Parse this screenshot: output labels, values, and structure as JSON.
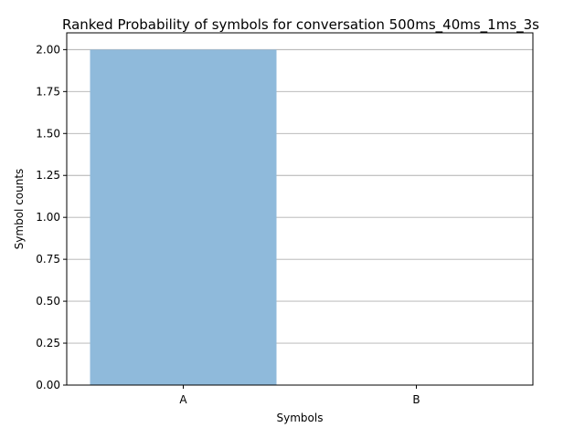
{
  "chart_data": {
    "type": "bar",
    "title": "Ranked Probability of symbols for conversation 500ms_40ms_1ms_3s",
    "xlabel": "Symbols",
    "ylabel": "Symbol counts",
    "categories": [
      "A",
      "B"
    ],
    "values": [
      2,
      0
    ],
    "ylim": [
      0,
      2.1
    ],
    "yticks": [
      "0.00",
      "0.25",
      "0.50",
      "0.75",
      "1.00",
      "1.25",
      "1.50",
      "1.75",
      "2.00"
    ],
    "grid": "horizontal",
    "bar_color": "#8fbadb",
    "grid_color": "#b0b0b0"
  }
}
